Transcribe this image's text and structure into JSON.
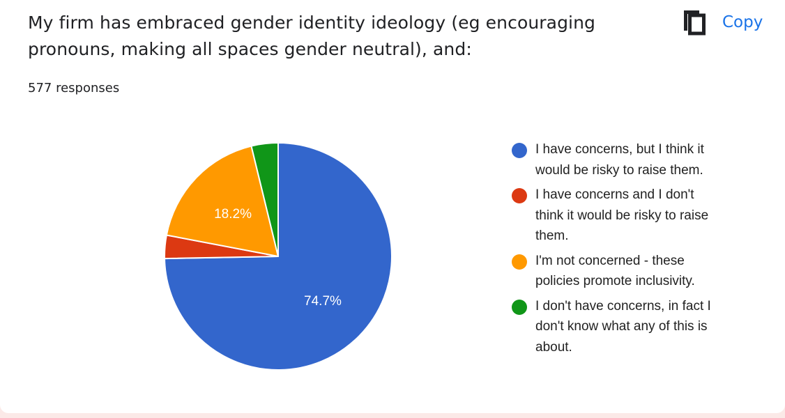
{
  "question": {
    "line1": "My firm has embraced gender identity ideology (eg encouraging",
    "line2": "pronouns, making all spaces gender neutral), and:"
  },
  "toolbar": {
    "copy_label": "Copy",
    "copy_icon": "copy-icon"
  },
  "responses_label": "577 responses",
  "chart_data": {
    "type": "pie",
    "start_angle": "12 o'clock, clockwise",
    "slices": [
      {
        "label": "I have concerns, but I think it would be risky to raise them.",
        "value": 74.7,
        "color": "#3366cc",
        "data_label": "74.7%"
      },
      {
        "label": "I have concerns and I don't think it would be risky to raise them.",
        "value": 3.3,
        "color": "#dc3912",
        "data_label": ""
      },
      {
        "label": "I'm not concerned - these policies promote inclusivity.",
        "value": 18.2,
        "color": "#ff9900",
        "data_label": "18.2%"
      },
      {
        "label": "I don't have concerns, in fact I don't know what any of this is about.",
        "value": 3.8,
        "color": "#109618",
        "data_label": ""
      }
    ],
    "legend": {
      "position": "right",
      "items": [
        {
          "lines": [
            "I have concerns, but I think it",
            "would be risky to raise them."
          ],
          "color": "#3366cc"
        },
        {
          "lines": [
            "I have concerns and I don't",
            "think it would be risky to raise",
            "them."
          ],
          "color": "#dc3912"
        },
        {
          "lines": [
            "I'm not concerned - these",
            "policies promote inclusivity."
          ],
          "color": "#ff9900"
        },
        {
          "lines": [
            "I don't have concerns, in fact I",
            "don't know what any of this is",
            "about."
          ],
          "color": "#109618"
        }
      ]
    }
  }
}
